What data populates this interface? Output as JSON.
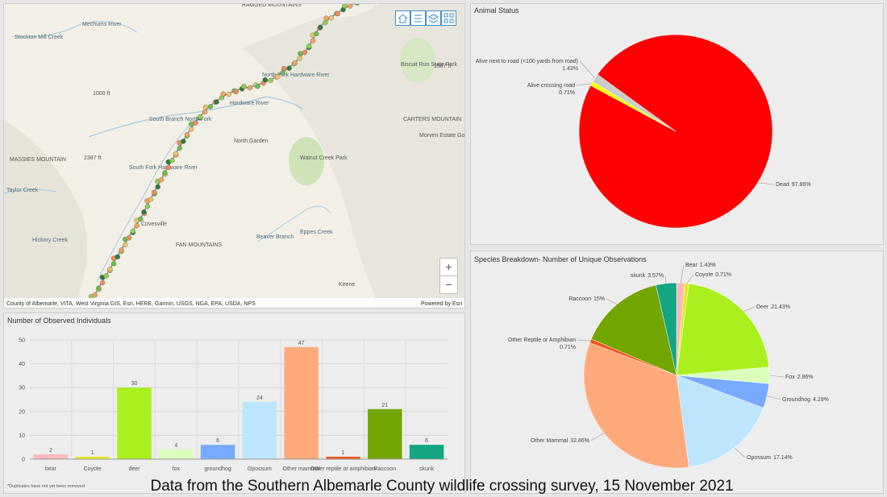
{
  "map": {
    "labels": [
      "RAGGED MOUNTAINS",
      "Stockton Mill Creek",
      "Mechums River",
      "Biscuit Run State Park",
      "1587 ft",
      "North Fork Hardware River",
      "South Branch North Fork",
      "Hardware River",
      "North Garden",
      "Walnut Creek Park",
      "Morven Estate Golf Course",
      "CARTERS MOUNTAIN",
      "MASSIES MOUNTAIN",
      "2387 ft",
      "Taylor Creek",
      "South Fork Hardware River",
      "Covesville",
      "Hickory Creek",
      "FAN MOUNTAINS",
      "Beaver Branch",
      "Eppes Creek",
      "Keene",
      "1000 ft"
    ],
    "attribution": "County of Albemarle, VITA, West Virginia GIS, Esri, HERE, Garmin, USGS, NGA, EPA, USDA, NPS",
    "powered_by": "Powered by Esri",
    "zoom_in": "+",
    "zoom_out": "−"
  },
  "chart_data": [
    {
      "type": "bar",
      "title": "Number of Observed Individuals",
      "footnote": "*Duplicates have not yet been removed",
      "categories": [
        "bear",
        "Coyote",
        "deer",
        "fox",
        "groundhog",
        "Opossum",
        "Other mammal",
        "Other reptile or amphibian",
        "Raccoon",
        "skunk"
      ],
      "values": [
        2,
        1,
        30,
        4,
        6,
        24,
        47,
        1,
        21,
        6
      ],
      "colors": [
        "#f9b9b9",
        "#e8e81c",
        "#aaf01e",
        "#d9ffba",
        "#78aaff",
        "#bde6fd",
        "#ffaa7a",
        "#f0561a",
        "#73a500",
        "#12a683"
      ],
      "ylim": [
        0,
        50
      ],
      "yticks": [
        0,
        10,
        20,
        30,
        40,
        50
      ],
      "grid": true
    },
    {
      "type": "pie",
      "title": "Animal Status",
      "categories": [
        "Dead",
        "Alive crossing road",
        "Alive next to road (<100 yards from road)"
      ],
      "values": [
        97.86,
        0.71,
        1.43
      ],
      "value_labels": [
        "97.86%",
        "0.71%",
        "1.43%"
      ],
      "colors": [
        "#ff0000",
        "#ffff00",
        "#cccccc"
      ]
    },
    {
      "type": "pie",
      "title": "Species Breakdown- Number of Unique Observations",
      "categories": [
        "Bear",
        "Coyote",
        "Deer",
        "Fox",
        "Groundhog",
        "Opossum",
        "Other Mammal",
        "Other Reptile or Amphibian",
        "Raccoon",
        "skunk"
      ],
      "values": [
        1.43,
        0.71,
        21.43,
        2.86,
        4.29,
        17.14,
        32.86,
        0.71,
        15,
        3.57
      ],
      "value_labels": [
        "1.43%",
        "0.71%",
        "21.43%",
        "2.86%",
        "4.29%",
        "17.14%",
        "32.86%",
        "0.71%",
        "15%",
        "3.57%"
      ],
      "colors": [
        "#f9b9b9",
        "#e8e81c",
        "#aaf01e",
        "#d9ffba",
        "#78aaff",
        "#bde6fd",
        "#ffaa7a",
        "#f0561a",
        "#73a500",
        "#12a683"
      ]
    }
  ],
  "caption": "Data from the Southern Albemarle County wildlife crossing survey, 15 November 2021"
}
